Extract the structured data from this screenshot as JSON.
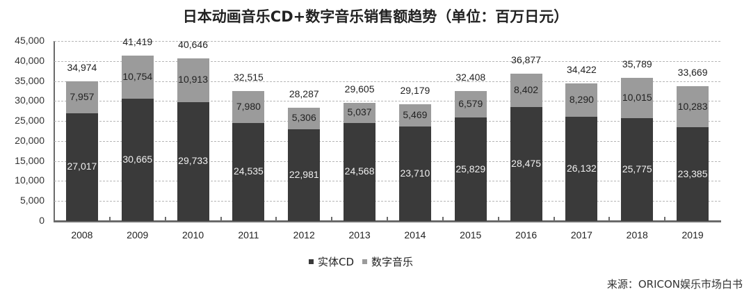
{
  "chart_data": {
    "type": "bar",
    "stacked": true,
    "title": "日本动画音乐CD+数字音乐销售额趋势（单位：百万日元）",
    "xlabel": "",
    "ylabel": "",
    "ylim": [
      0,
      45000
    ],
    "yticks": [
      "0",
      "5,000",
      "10,000",
      "15,000",
      "20,000",
      "25,000",
      "30,000",
      "35,000",
      "40,000",
      "45,000"
    ],
    "grid": true,
    "legend_position": "bottom",
    "categories": [
      "2008",
      "2009",
      "2010",
      "2011",
      "2012",
      "2013",
      "2014",
      "2015",
      "2016",
      "2017",
      "2018",
      "2019"
    ],
    "series": [
      {
        "name": "实体CD",
        "color": "#3a3a3a",
        "values": [
          27017,
          30665,
          29733,
          24535,
          22981,
          24568,
          23710,
          25829,
          28475,
          26132,
          25775,
          23385
        ],
        "labels": [
          "27,017",
          "30,665",
          "29,733",
          "24,535",
          "22,981",
          "24,568",
          "23,710",
          "25,829",
          "28,475",
          "26,132",
          "25,775",
          "23,385"
        ]
      },
      {
        "name": "数字音乐",
        "color": "#9b9b9b",
        "values": [
          7957,
          10754,
          10913,
          7980,
          5306,
          5037,
          5469,
          6579,
          8402,
          8290,
          10015,
          10283
        ],
        "labels": [
          "7,957",
          "10,754",
          "10,913",
          "7,980",
          "5,306",
          "5,037",
          "5,469",
          "6,579",
          "8,402",
          "8,290",
          "10,015",
          "10,283"
        ]
      }
    ],
    "totals": [
      34974,
      41419,
      40646,
      32515,
      28287,
      29605,
      29179,
      32408,
      36877,
      34422,
      35789,
      33669
    ],
    "total_labels": [
      "34,974",
      "41,419",
      "40,646",
      "32,515",
      "28,287",
      "29,605",
      "29,179",
      "32,408",
      "36,877",
      "34,422",
      "35,789",
      "33,669"
    ],
    "source": "来源：ORICON娱乐市场白书"
  },
  "legend": {
    "items": [
      {
        "label": "实体CD",
        "color": "#3a3a3a"
      },
      {
        "label": "数字音乐",
        "color": "#9b9b9b"
      }
    ]
  },
  "source": "来源：ORICON娱乐市场白书"
}
